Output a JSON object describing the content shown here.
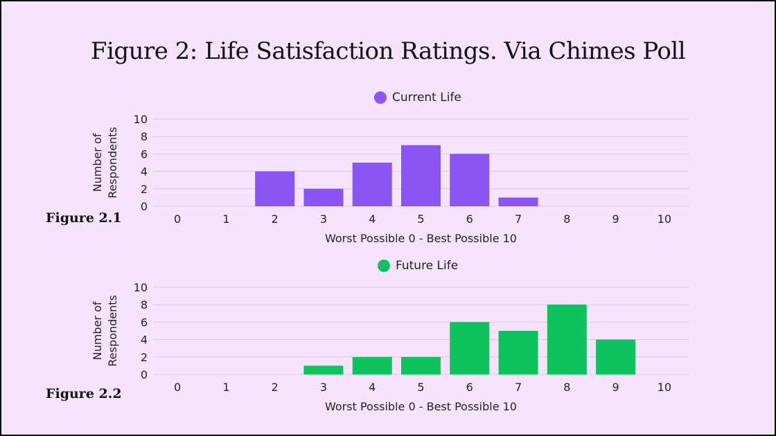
{
  "title": "Figure 2: Life Satisfaction Ratings. Via Chimes Poll",
  "chart_data": [
    {
      "type": "bar",
      "figure_label": "Figure 2.1",
      "legend": "Current Life",
      "color": "#8b55f6",
      "categories": [
        "0",
        "1",
        "2",
        "3",
        "4",
        "5",
        "6",
        "7",
        "8",
        "9",
        "10"
      ],
      "values": [
        0,
        0,
        4,
        2,
        5,
        7,
        6,
        1,
        0,
        0,
        0
      ],
      "xlabel": "Worst Possible 0 - Best Possible 10",
      "ylabel_lines": [
        "Number of",
        "Respondents"
      ],
      "yticks": [
        "0",
        "2",
        "4",
        "6",
        "8",
        "10"
      ],
      "ylim": [
        0,
        10
      ]
    },
    {
      "type": "bar",
      "figure_label": "Figure 2.2",
      "legend": "Future Life",
      "color": "#0ec25e",
      "categories": [
        "0",
        "1",
        "2",
        "3",
        "4",
        "5",
        "6",
        "7",
        "8",
        "9",
        "10"
      ],
      "values": [
        0,
        0,
        0,
        1,
        2,
        2,
        6,
        5,
        8,
        4,
        0
      ],
      "xlabel": "Worst Possible 0 - Best Possible 10",
      "ylabel_lines": [
        "Number of",
        "Respondents"
      ],
      "yticks": [
        "0",
        "2",
        "4",
        "6",
        "8",
        "10"
      ],
      "ylim": [
        0,
        10
      ]
    }
  ]
}
